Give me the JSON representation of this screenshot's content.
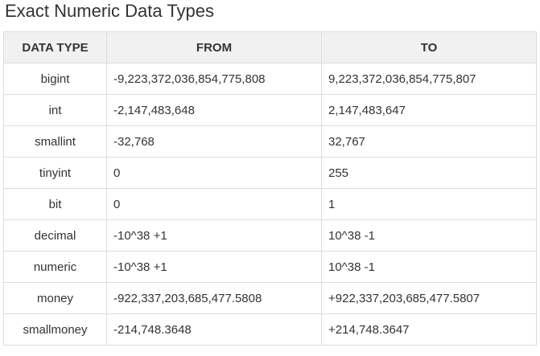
{
  "title": "Exact Numeric Data Types",
  "table": {
    "headers": [
      "DATA TYPE",
      "FROM",
      "TO"
    ],
    "rows": [
      {
        "type": "bigint",
        "from": "-9,223,372,036,854,775,808",
        "to": "9,223,372,036,854,775,807"
      },
      {
        "type": "int",
        "from": "-2,147,483,648",
        "to": "2,147,483,647"
      },
      {
        "type": "smallint",
        "from": "-32,768",
        "to": "32,767"
      },
      {
        "type": "tinyint",
        "from": "0",
        "to": "255"
      },
      {
        "type": "bit",
        "from": "0",
        "to": "1"
      },
      {
        "type": "decimal",
        "from": "-10^38 +1",
        "to": "10^38 -1"
      },
      {
        "type": "numeric",
        "from": "-10^38 +1",
        "to": "10^38 -1"
      },
      {
        "type": "money",
        "from": "-922,337,203,685,477.5808",
        "to": "+922,337,203,685,477.5807"
      },
      {
        "type": "smallmoney",
        "from": "-214,748.3648",
        "to": "+214,748.3647"
      }
    ]
  }
}
